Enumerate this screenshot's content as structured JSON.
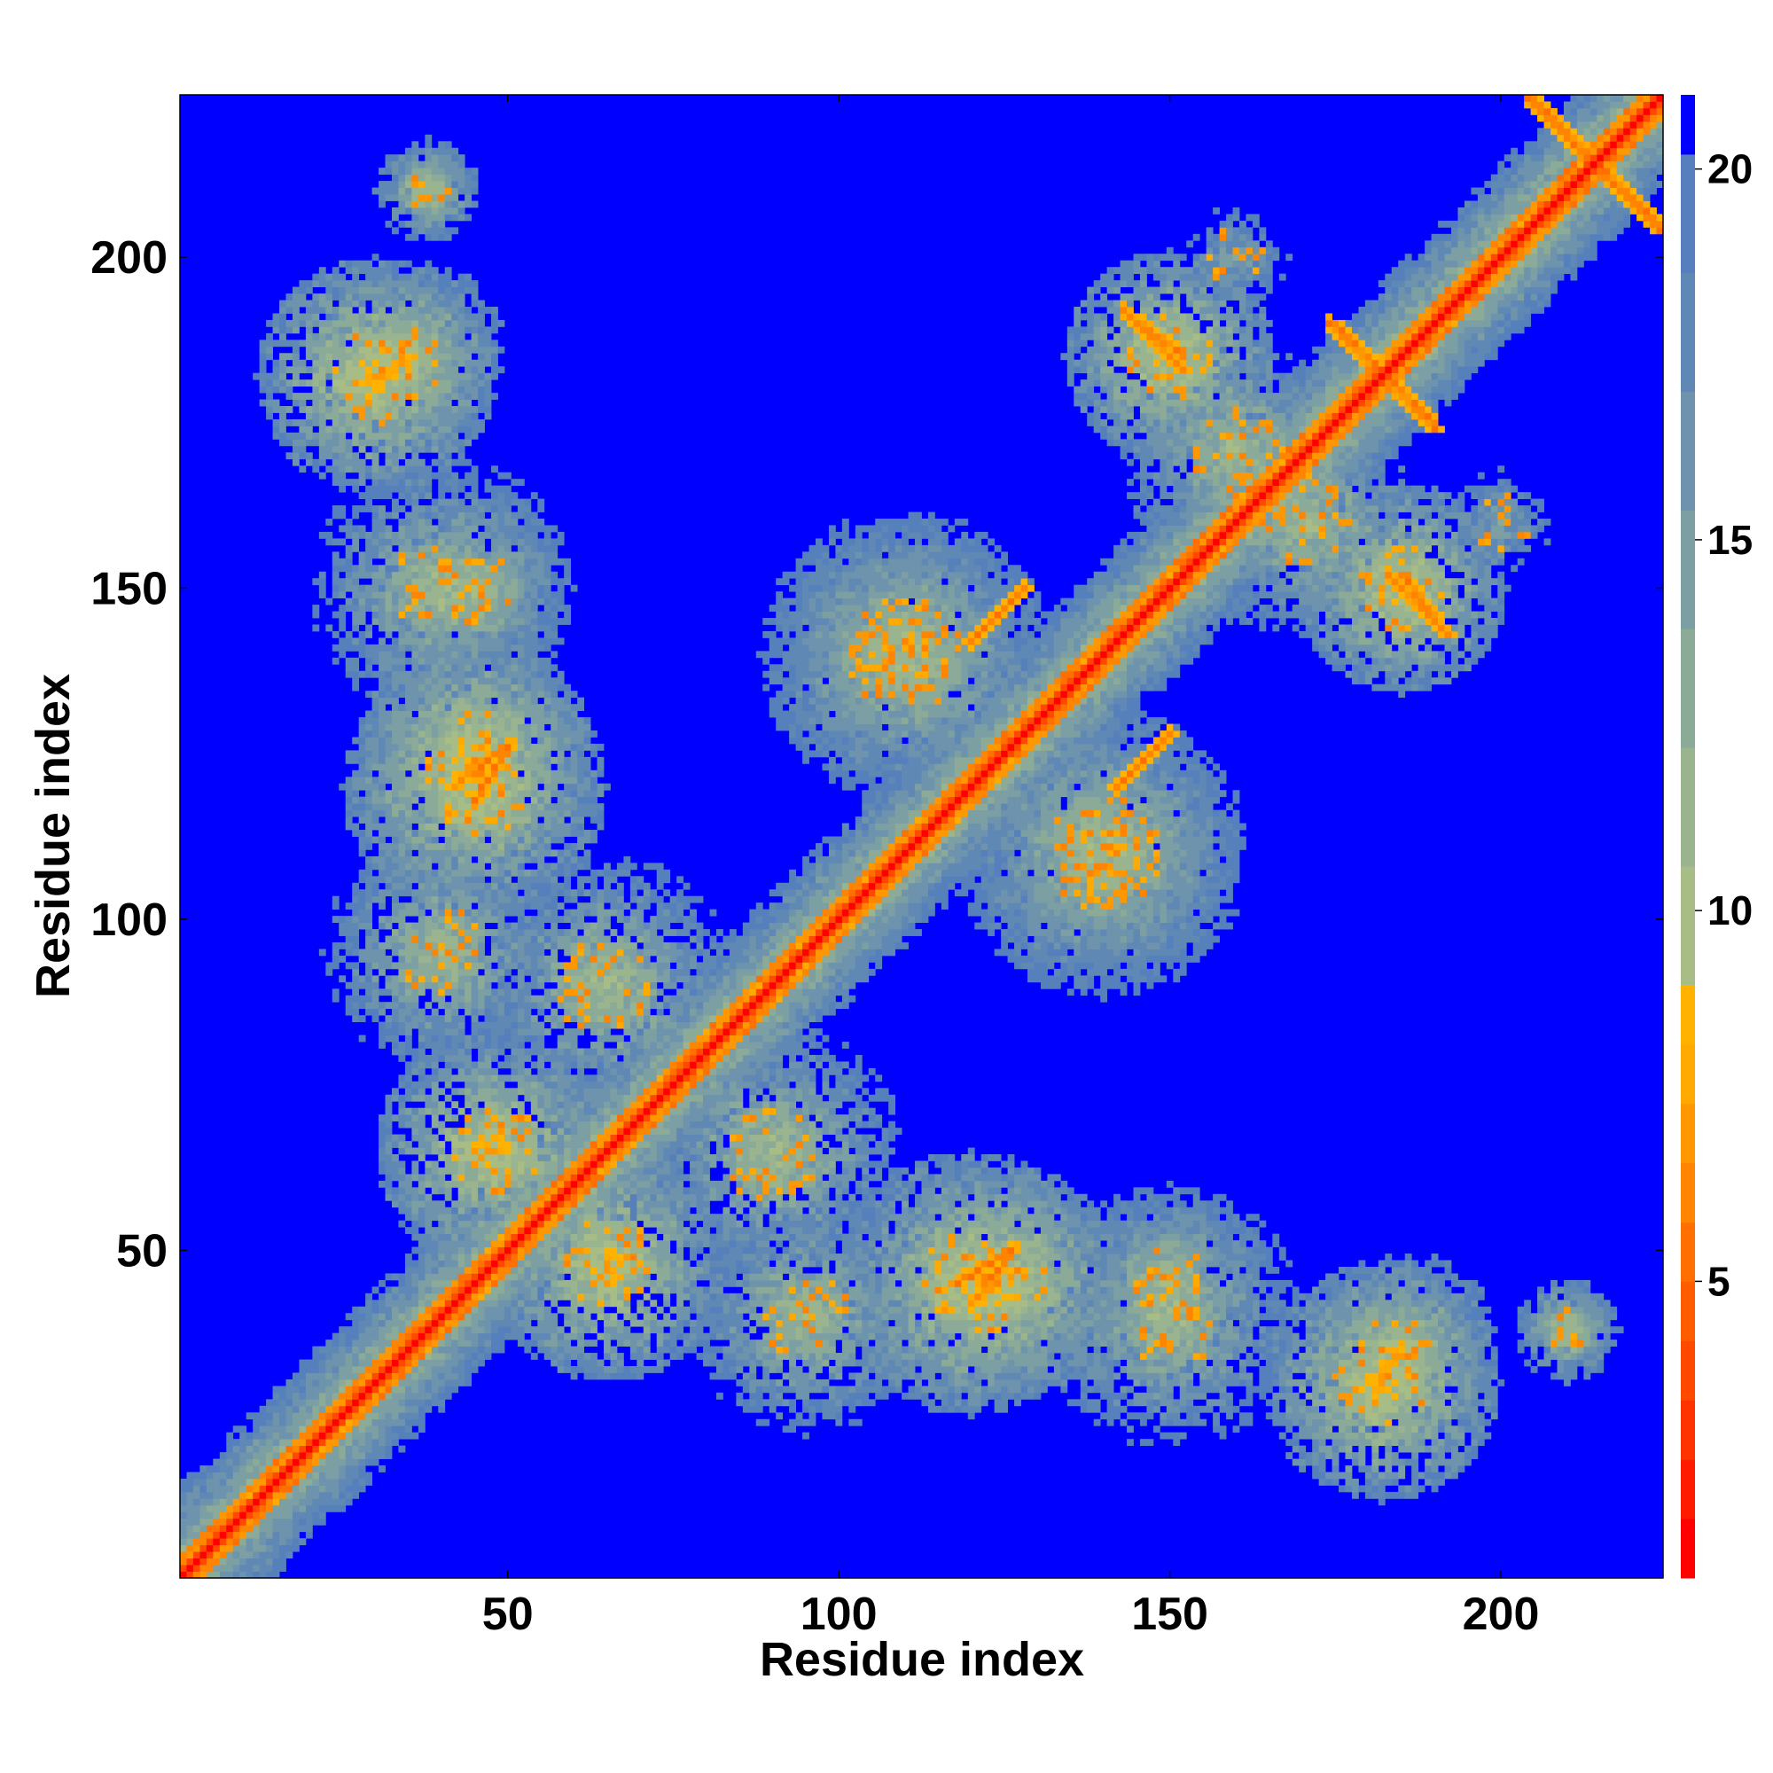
{
  "chart_data": {
    "type": "heatmap",
    "title": "",
    "xlabel": "Residue index",
    "ylabel": "Residue index",
    "n_residues": 224,
    "xlim": [
      1,
      224
    ],
    "ylim": [
      1,
      224
    ],
    "x_ticks": [
      50,
      100,
      150,
      200
    ],
    "y_ticks": [
      50,
      100,
      150,
      200
    ],
    "colorbar": {
      "range": [
        1,
        21
      ],
      "ticks": [
        5,
        10,
        15,
        20
      ],
      "levels": [
        {
          "upper": 1.8,
          "color": "#ff0000"
        },
        {
          "upper": 2.6,
          "color": "#ff1a00"
        },
        {
          "upper": 3.4,
          "color": "#ff3300"
        },
        {
          "upper": 4.2,
          "color": "#ff4800"
        },
        {
          "upper": 5.0,
          "color": "#ff5c00"
        },
        {
          "upper": 5.8,
          "color": "#ff7000"
        },
        {
          "upper": 6.6,
          "color": "#ff8400"
        },
        {
          "upper": 7.4,
          "color": "#ff9800"
        },
        {
          "upper": 8.2,
          "color": "#ffaa00"
        },
        {
          "upper": 9.0,
          "color": "#ffb300"
        },
        {
          "upper": 10.6,
          "color": "#a8bc86"
        },
        {
          "upper": 12.2,
          "color": "#9ab48f"
        },
        {
          "upper": 13.8,
          "color": "#8caa98"
        },
        {
          "upper": 15.4,
          "color": "#7c9fa4"
        },
        {
          "upper": 17.0,
          "color": "#6e93ad"
        },
        {
          "upper": 18.6,
          "color": "#6088b5"
        },
        {
          "upper": 20.2,
          "color": "#5680bb"
        },
        {
          "upper": 21.0,
          "color": "#0000ff"
        }
      ]
    },
    "background_value": 21,
    "features": [
      {
        "kind": "helix-diagonal",
        "from": 1,
        "to": 224
      },
      {
        "kind": "blob",
        "i": 30,
        "j": 182,
        "radius": 18,
        "peak": 7
      },
      {
        "kind": "blob",
        "i": 38,
        "j": 210,
        "radius": 8,
        "peak": 8
      },
      {
        "kind": "blob",
        "i": 40,
        "j": 150,
        "radius": 20,
        "peak": 9
      },
      {
        "kind": "blob",
        "i": 45,
        "j": 120,
        "radius": 20,
        "peak": 7
      },
      {
        "kind": "blob",
        "i": 48,
        "j": 65,
        "radius": 18,
        "peak": 7
      },
      {
        "kind": "blob",
        "i": 90,
        "j": 65,
        "radius": 20,
        "peak": 9
      },
      {
        "kind": "blob",
        "i": 95,
        "j": 40,
        "radius": 18,
        "peak": 9
      },
      {
        "kind": "blob",
        "i": 125,
        "j": 45,
        "radius": 18,
        "peak": 7
      },
      {
        "kind": "blob",
        "i": 150,
        "j": 45,
        "radius": 15,
        "peak": 9
      },
      {
        "kind": "blob",
        "i": 185,
        "j": 35,
        "radius": 15,
        "peak": 8
      },
      {
        "kind": "blob",
        "i": 210,
        "j": 38,
        "radius": 6,
        "peak": 9
      },
      {
        "kind": "blob",
        "i": 140,
        "j": 110,
        "radius": 22,
        "peak": 9
      },
      {
        "kind": "blob",
        "i": 110,
        "j": 140,
        "radius": 22,
        "peak": 9
      },
      {
        "kind": "blob",
        "i": 160,
        "j": 170,
        "radius": 18,
        "peak": 9
      },
      {
        "kind": "blob",
        "i": 185,
        "j": 150,
        "radius": 16,
        "peak": 7
      },
      {
        "kind": "blob",
        "i": 200,
        "j": 160,
        "radius": 12,
        "peak": 13
      },
      {
        "kind": "antidiagonal",
        "i0": 145,
        "j0": 190,
        "i1": 152,
        "j1": 183
      },
      {
        "kind": "antidiagonal",
        "i0": 175,
        "j0": 190,
        "i1": 190,
        "j1": 174
      },
      {
        "kind": "antidiagonal",
        "i0": 185,
        "j0": 152,
        "i1": 192,
        "j1": 143
      },
      {
        "kind": "antidiagonal",
        "i0": 205,
        "j0": 224,
        "i1": 224,
        "j1": 204
      },
      {
        "kind": "antidiagonal",
        "i0": 118,
        "j0": 45,
        "i1": 126,
        "j1": 50
      },
      {
        "kind": "antidiagonal",
        "i0": 42,
        "j0": 120,
        "i1": 50,
        "j1": 126
      },
      {
        "kind": "antidiagonal",
        "i0": 120,
        "j0": 142,
        "i1": 128,
        "j1": 150
      },
      {
        "kind": "antidiagonal",
        "i0": 142,
        "j0": 120,
        "i1": 150,
        "j1": 128
      }
    ]
  }
}
